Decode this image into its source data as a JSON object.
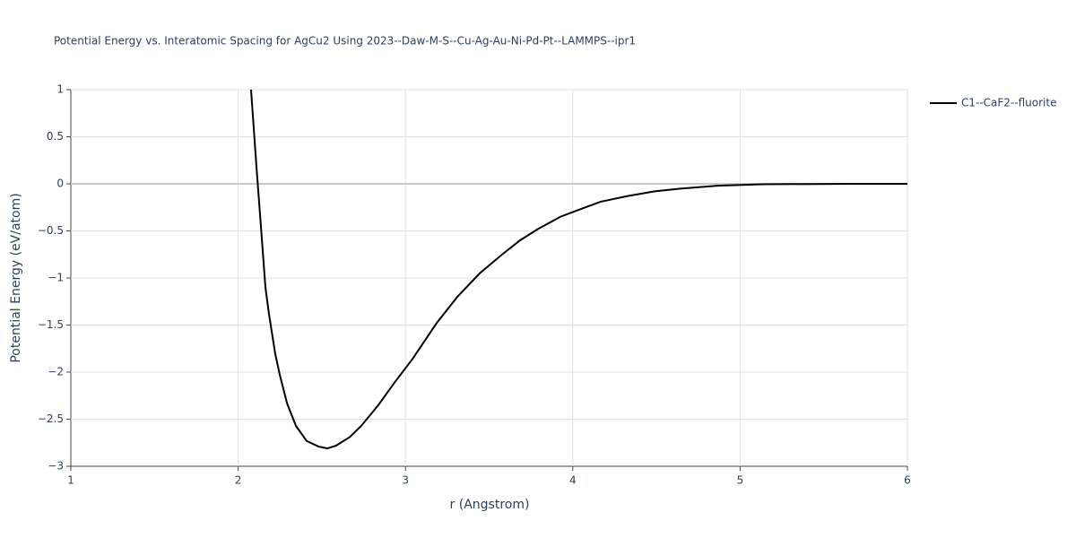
{
  "chart_data": {
    "type": "line",
    "title": "Potential Energy vs. Interatomic Spacing for AgCu2 Using 2023--Daw-M-S--Cu-Ag-Au-Ni-Pd-Pt--LAMMPS--ipr1",
    "x_label": "r (Angstrom)",
    "y_label": "Potential Energy (eV/atom)",
    "x": [
      2.077,
      2.109,
      2.131,
      2.163,
      2.184,
      2.222,
      2.249,
      2.292,
      2.345,
      2.409,
      2.479,
      2.533,
      2.586,
      2.667,
      2.736,
      2.838,
      2.935,
      3.042,
      3.186,
      3.31,
      3.444,
      3.578,
      3.685,
      3.792,
      3.926,
      4.06,
      4.167,
      4.328,
      4.489,
      4.649,
      4.864,
      5.132,
      5.668,
      6.0
    ],
    "series": [
      {
        "name": "C1--CaF2--fluorite",
        "color": "#000000",
        "values": [
          1,
          0.19,
          -0.33,
          -1.1,
          -1.38,
          -1.81,
          -2.03,
          -2.33,
          -2.57,
          -2.73,
          -2.79,
          -2.81,
          -2.78,
          -2.69,
          -2.57,
          -2.35,
          -2.11,
          -1.86,
          -1.48,
          -1.2,
          -0.95,
          -0.75,
          -0.6,
          -0.48,
          -0.35,
          -0.26,
          -0.19,
          -0.13,
          -0.08,
          -0.05,
          -0.02,
          -0.005,
          0,
          0
        ]
      }
    ],
    "xlim": [
      1,
      6
    ],
    "xticks": [
      1,
      2,
      3,
      4,
      5,
      6
    ],
    "ylim": [
      -3,
      1
    ],
    "yticks": [
      {
        "value": -3,
        "label": "−3"
      },
      {
        "value": -2.5,
        "label": "−2.5"
      },
      {
        "value": -2,
        "label": "−2"
      },
      {
        "value": -1.5,
        "label": "−1.5"
      },
      {
        "value": -1,
        "label": "−1"
      },
      {
        "value": -0.5,
        "label": "−0.5"
      },
      0,
      0.5,
      1
    ],
    "grid": true,
    "legend": "right"
  }
}
